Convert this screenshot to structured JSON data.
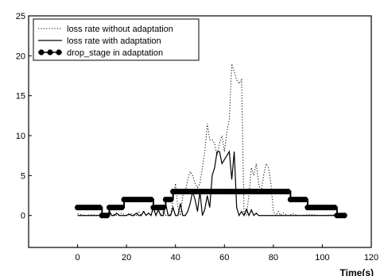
{
  "chart_data": {
    "type": "line",
    "title": "",
    "xlabel": "Time(s)",
    "ylabel": "",
    "xlim": [
      -20,
      120
    ],
    "ylim": [
      -4,
      25
    ],
    "x_ticks": [
      0,
      20,
      40,
      60,
      80,
      100,
      120
    ],
    "y_ticks": [
      0,
      5,
      10,
      15,
      20,
      25
    ],
    "grid": false,
    "legend_position": "top-left",
    "series": [
      {
        "name": "loss rate without adaptation",
        "style": "dotted",
        "x": [
          0,
          3,
          6,
          9,
          10,
          12,
          14,
          16,
          18,
          20,
          22,
          24,
          25,
          26,
          27,
          28,
          29,
          30,
          31,
          32,
          33,
          34,
          35,
          36,
          37,
          38,
          39,
          40,
          41,
          42,
          43,
          44,
          45,
          46,
          47,
          48,
          49,
          50,
          51,
          52,
          53,
          54,
          55,
          56,
          57,
          58,
          59,
          60,
          61,
          62,
          63,
          64,
          65,
          66,
          67,
          68,
          69,
          70,
          71,
          72,
          73,
          74,
          75,
          76,
          77,
          78,
          79,
          80,
          81,
          82,
          83,
          84,
          86,
          88,
          90,
          95,
          100,
          105,
          110
        ],
        "values": [
          0.2,
          0,
          0.1,
          0,
          0.3,
          0,
          0.2,
          0,
          0.3,
          0,
          0.2,
          0,
          0.5,
          0,
          0.6,
          0,
          0.3,
          0,
          1.2,
          0,
          0.8,
          0,
          0.5,
          0,
          0.3,
          0,
          2,
          4,
          1,
          0,
          2.5,
          3,
          4.5,
          5.5,
          5,
          4,
          3.5,
          4,
          6,
          8,
          11.5,
          9.5,
          9.5,
          9,
          7.5,
          9,
          10,
          8,
          10.5,
          12,
          19,
          18,
          17,
          16.5,
          17,
          0.5,
          0,
          2.5,
          6,
          5,
          6.5,
          4,
          3,
          5,
          6.5,
          6,
          4,
          0.5,
          0,
          0.5,
          0,
          0.3,
          0,
          0.2,
          0,
          0.1,
          0,
          0.1,
          0
        ]
      },
      {
        "name": "loss rate with adaptation",
        "style": "solid",
        "x": [
          0,
          2,
          4,
          6,
          8,
          10,
          12,
          13,
          14,
          15,
          16,
          17,
          18,
          19,
          20,
          21,
          22,
          23,
          24,
          25,
          26,
          27,
          28,
          29,
          30,
          31,
          32,
          33,
          34,
          35,
          36,
          37,
          38,
          39,
          40,
          41,
          42,
          43,
          44,
          45,
          46,
          47,
          48,
          49,
          50,
          51,
          52,
          53,
          54,
          55,
          56,
          57,
          58,
          59,
          60,
          61,
          62,
          63,
          64,
          65,
          66,
          67,
          68,
          69,
          70,
          71,
          72,
          73,
          74,
          75,
          78,
          82,
          86,
          90,
          95,
          100,
          105,
          110
        ],
        "values": [
          0,
          0,
          0,
          0,
          0,
          0,
          0,
          0.5,
          0,
          0,
          0.3,
          0,
          0,
          0,
          0,
          0.2,
          0,
          0,
          0.3,
          0,
          0,
          0.5,
          0,
          0.3,
          0,
          1,
          0,
          0.7,
          0,
          0,
          1.5,
          0,
          0,
          1,
          0,
          0,
          1.5,
          0,
          0,
          0.5,
          1.5,
          3,
          2,
          0.5,
          3,
          0,
          0.8,
          2.5,
          1,
          5,
          6,
          8,
          8,
          6.5,
          7,
          7.5,
          8,
          4.5,
          8,
          1,
          0,
          0.5,
          0,
          0.8,
          0,
          0.7,
          0,
          0.3,
          0,
          0,
          0,
          0,
          0,
          0,
          0,
          0,
          0,
          0
        ]
      },
      {
        "name": "drop_stage in adaptation",
        "style": "solid-markers",
        "x": [
          0,
          10,
          13,
          19,
          31,
          36,
          39,
          87,
          94,
          106,
          109
        ],
        "values": [
          1,
          0,
          1,
          2,
          1,
          2,
          3,
          2,
          1,
          0,
          0
        ],
        "step": true
      }
    ]
  }
}
